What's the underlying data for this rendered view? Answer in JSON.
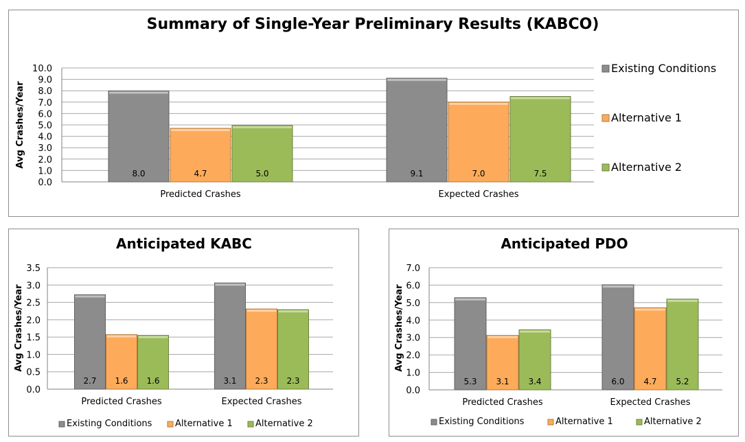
{
  "colors": {
    "Existing Conditions": "#8c8c8c",
    "Alternative 1": "#fdab5a",
    "Alternative 2": "#9bbb59"
  },
  "chart_data": [
    {
      "type": "bar",
      "title": "Summary of Single-Year Preliminary Results (KABCO)",
      "ylabel": "Avg Crashes/Year",
      "xlabel": "",
      "categories": [
        "Predicted Crashes",
        "Expected Crashes"
      ],
      "ylim": [
        0,
        10
      ],
      "ytick_step": 1,
      "grid": true,
      "legend": "right",
      "series": [
        {
          "name": "Existing Conditions",
          "values": [
            7.98,
            9.1
          ],
          "labels": [
            "8.0",
            "9.1"
          ]
        },
        {
          "name": "Alternative 1",
          "values": [
            4.7,
            7.0
          ],
          "labels": [
            "4.7",
            "7.0"
          ]
        },
        {
          "name": "Alternative 2",
          "values": [
            4.95,
            7.5
          ],
          "labels": [
            "5.0",
            "7.5"
          ]
        }
      ]
    },
    {
      "type": "bar",
      "title": "Anticipated KABC",
      "ylabel": "Avg Crashes/Year",
      "xlabel": "",
      "categories": [
        "Predicted Crashes",
        "Expected Crashes"
      ],
      "ylim": [
        0,
        3.5
      ],
      "ytick_step": 0.5,
      "grid": true,
      "legend": "bottom",
      "series": [
        {
          "name": "Existing Conditions",
          "values": [
            2.72,
            3.06
          ],
          "labels": [
            "2.7",
            "3.1"
          ]
        },
        {
          "name": "Alternative 1",
          "values": [
            1.57,
            2.31
          ],
          "labels": [
            "1.6",
            "2.3"
          ]
        },
        {
          "name": "Alternative 2",
          "values": [
            1.55,
            2.29
          ],
          "labels": [
            "1.6",
            "2.3"
          ]
        }
      ]
    },
    {
      "type": "bar",
      "title": "Anticipated PDO",
      "ylabel": "Avg Crashes/Year",
      "xlabel": "",
      "categories": [
        "Predicted Crashes",
        "Expected Crashes"
      ],
      "ylim": [
        0,
        7
      ],
      "ytick_step": 1,
      "grid": true,
      "legend": "bottom",
      "series": [
        {
          "name": "Existing Conditions",
          "values": [
            5.28,
            6.02
          ],
          "labels": [
            "5.3",
            "6.0"
          ]
        },
        {
          "name": "Alternative 1",
          "values": [
            3.12,
            4.7
          ],
          "labels": [
            "3.1",
            "4.7"
          ]
        },
        {
          "name": "Alternative 2",
          "values": [
            3.44,
            5.2
          ],
          "labels": [
            "3.4",
            "5.2"
          ]
        }
      ]
    }
  ]
}
